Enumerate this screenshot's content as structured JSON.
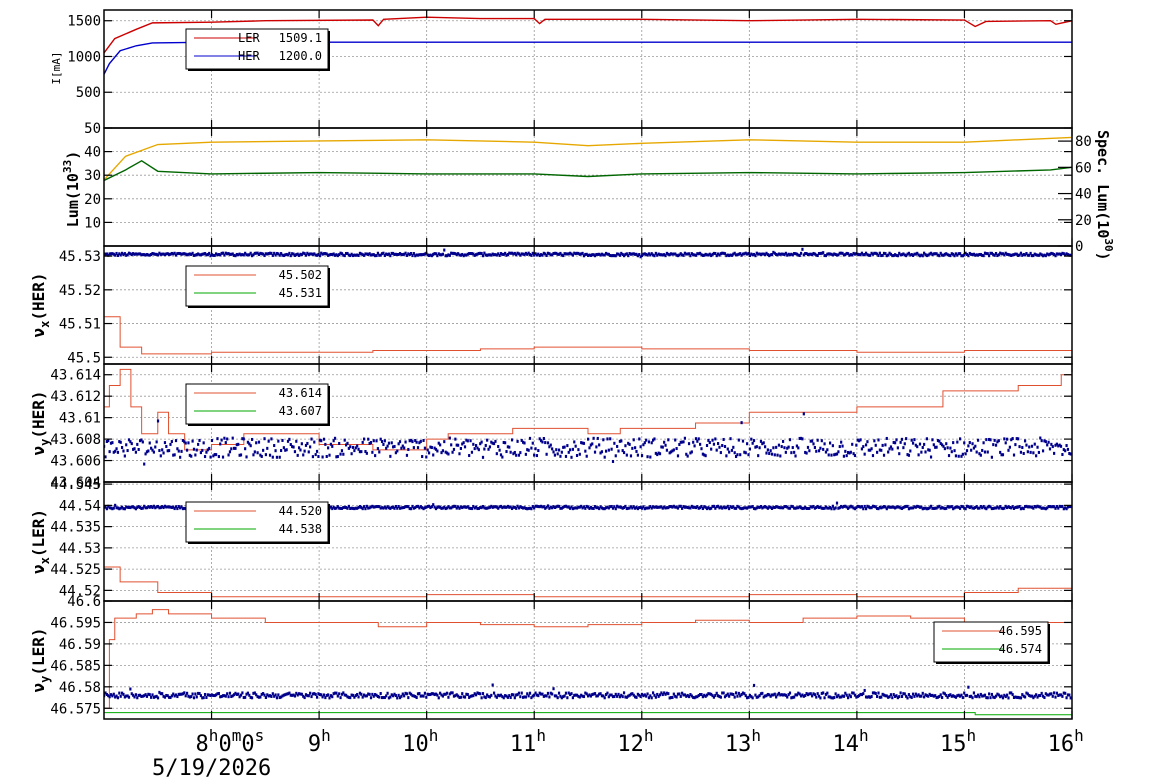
{
  "chart_data": {
    "type": "line",
    "x_axis": {
      "range_hours": [
        7.0,
        16.0
      ],
      "ticks": [
        {
          "hour": 8,
          "label": "8",
          "sup": "h",
          "extra": "0",
          "extra_sup": "m",
          "extra2": "0",
          "extra2_sup": "s"
        },
        {
          "hour": 9,
          "label": "9",
          "sup": "h"
        },
        {
          "hour": 10,
          "label": "10",
          "sup": "h"
        },
        {
          "hour": 11,
          "label": "11",
          "sup": "h"
        },
        {
          "hour": 12,
          "label": "12",
          "sup": "h"
        },
        {
          "hour": 13,
          "label": "13",
          "sup": "h"
        },
        {
          "hour": 14,
          "label": "14",
          "sup": "h"
        },
        {
          "hour": 15,
          "label": "15",
          "sup": "h"
        },
        {
          "hour": 16,
          "label": "16",
          "sup": "h"
        }
      ],
      "date_label": "5/19/2026"
    },
    "panels": [
      {
        "id": "current",
        "ylabel": "I[mA]",
        "ylim": [
          0,
          1650
        ],
        "yticks": [
          500,
          1000,
          1500
        ],
        "tick_labels": [
          "500",
          "1000",
          "1500"
        ],
        "legend": {
          "position": "top-left",
          "entries": [
            {
              "name": "LER",
              "value": "1509.1",
              "color": "#cc0000"
            },
            {
              "name": "HER",
              "value": "1200.0",
              "color": "#0000cc"
            }
          ]
        },
        "series": [
          {
            "name": "LER",
            "color": "#cc0000",
            "points": [
              [
                7.0,
                1050
              ],
              [
                7.1,
                1250
              ],
              [
                7.3,
                1380
              ],
              [
                7.45,
                1470
              ],
              [
                8.0,
                1480
              ],
              [
                8.5,
                1500
              ],
              [
                9.5,
                1510
              ],
              [
                9.55,
                1430
              ],
              [
                9.6,
                1520
              ],
              [
                10.0,
                1550
              ],
              [
                10.5,
                1530
              ],
              [
                11.0,
                1530
              ],
              [
                11.05,
                1460
              ],
              [
                11.1,
                1520
              ],
              [
                12.0,
                1520
              ],
              [
                13.0,
                1500
              ],
              [
                14.0,
                1520
              ],
              [
                15.0,
                1510
              ],
              [
                15.1,
                1420
              ],
              [
                15.2,
                1490
              ],
              [
                15.8,
                1500
              ],
              [
                15.85,
                1450
              ],
              [
                16.0,
                1500
              ]
            ]
          },
          {
            "name": "HER",
            "color": "#0000cc",
            "points": [
              [
                7.0,
                750
              ],
              [
                7.05,
                900
              ],
              [
                7.15,
                1080
              ],
              [
                7.3,
                1150
              ],
              [
                7.45,
                1190
              ],
              [
                8.0,
                1200
              ],
              [
                16.0,
                1200
              ]
            ]
          }
        ]
      },
      {
        "id": "luminosity",
        "ylabel": "Lum(10",
        "ylabel_sup": "33",
        "ylabel_close": ")",
        "ylim": [
          0,
          50
        ],
        "yticks": [
          10,
          20,
          30,
          40,
          50
        ],
        "tick_labels": [
          "10",
          "20",
          "30",
          "40",
          "50"
        ],
        "y2label": "Spec. Lum(10",
        "y2label_sup": "30",
        "y2label_close": ")",
        "y2lim": [
          0,
          90
        ],
        "y2ticks": [
          0,
          20,
          40,
          60,
          80
        ],
        "y2tick_labels": [
          "0",
          "20",
          "40",
          "60",
          "80"
        ],
        "series": [
          {
            "name": "Luminosity",
            "color": "#e6a800",
            "axis": "left",
            "points": [
              [
                7.0,
                28
              ],
              [
                7.2,
                38
              ],
              [
                7.5,
                43
              ],
              [
                8.0,
                44
              ],
              [
                9.0,
                44.5
              ],
              [
                10.0,
                45
              ],
              [
                11.0,
                44
              ],
              [
                11.5,
                42.5
              ],
              [
                12.0,
                43.5
              ],
              [
                13.0,
                45
              ],
              [
                14.0,
                44
              ],
              [
                15.0,
                44
              ],
              [
                15.5,
                45
              ],
              [
                16.0,
                46
              ]
            ]
          },
          {
            "name": "Specific luminosity",
            "color": "#006600",
            "axis": "right",
            "points": [
              [
                7.0,
                50
              ],
              [
                7.2,
                58
              ],
              [
                7.35,
                65
              ],
              [
                7.5,
                57
              ],
              [
                8.0,
                55
              ],
              [
                9.0,
                56
              ],
              [
                10.0,
                55
              ],
              [
                11.0,
                55
              ],
              [
                11.5,
                53
              ],
              [
                12.0,
                55
              ],
              [
                13.0,
                56
              ],
              [
                14.0,
                55
              ],
              [
                15.0,
                56
              ],
              [
                15.8,
                58
              ],
              [
                16.0,
                60
              ]
            ]
          }
        ]
      },
      {
        "id": "nux_her",
        "ylabel": "ν",
        "ylabel_sub": "x",
        "ylabel_rest": "(HER)",
        "ylim": [
          45.498,
          45.533
        ],
        "yticks": [
          45.5,
          45.51,
          45.52,
          45.53
        ],
        "tick_labels": [
          "45.5",
          "45.51",
          "45.52",
          "45.53"
        ],
        "legend": {
          "position": "top-left",
          "entries": [
            {
              "name": "",
              "value": "45.502",
              "color": "#e05030"
            },
            {
              "name": "",
              "value": "45.531",
              "color": "#00aa00"
            }
          ]
        },
        "series": [
          {
            "name": "set",
            "color": "#e05030",
            "step": true,
            "points": [
              [
                7.0,
                45.512
              ],
              [
                7.15,
                45.503
              ],
              [
                7.35,
                45.501
              ],
              [
                8.0,
                45.5015
              ],
              [
                9.5,
                45.502
              ],
              [
                10.5,
                45.5025
              ],
              [
                11.0,
                45.503
              ],
              [
                12.0,
                45.5025
              ],
              [
                13.0,
                45.502
              ],
              [
                14.0,
                45.5015
              ],
              [
                15.0,
                45.502
              ],
              [
                16.0,
                45.502
              ]
            ]
          },
          {
            "name": "measured",
            "color": "#00008b",
            "scatter": true,
            "center": 45.5305,
            "jitter": 0.0004,
            "points": []
          }
        ]
      },
      {
        "id": "nuy_her",
        "ylabel": "ν",
        "ylabel_sub": "y",
        "ylabel_rest": "(HER)",
        "ylim": [
          43.604,
          43.615
        ],
        "yticks": [
          43.604,
          43.606,
          43.608,
          43.61,
          43.612,
          43.614
        ],
        "tick_labels": [
          "43.604",
          "43.606",
          "43.608",
          "43.61",
          "43.612",
          "43.614"
        ],
        "legend": {
          "position": "top-left",
          "entries": [
            {
              "name": "",
              "value": "43.614",
              "color": "#e05030"
            },
            {
              "name": "",
              "value": "43.607",
              "color": "#00aa00"
            }
          ]
        },
        "series": [
          {
            "name": "set",
            "color": "#e05030",
            "step": true,
            "points": [
              [
                7.0,
                43.611
              ],
              [
                7.05,
                43.613
              ],
              [
                7.15,
                43.6145
              ],
              [
                7.25,
                43.611
              ],
              [
                7.35,
                43.6085
              ],
              [
                7.5,
                43.6105
              ],
              [
                7.6,
                43.6085
              ],
              [
                7.75,
                43.607
              ],
              [
                8.0,
                43.6075
              ],
              [
                8.3,
                43.6085
              ],
              [
                9.0,
                43.6075
              ],
              [
                9.5,
                43.607
              ],
              [
                10.0,
                43.608
              ],
              [
                10.2,
                43.6085
              ],
              [
                10.8,
                43.609
              ],
              [
                11.5,
                43.6085
              ],
              [
                11.8,
                43.609
              ],
              [
                12.5,
                43.6095
              ],
              [
                13.0,
                43.6105
              ],
              [
                14.0,
                43.611
              ],
              [
                14.8,
                43.6125
              ],
              [
                15.5,
                43.613
              ],
              [
                15.9,
                43.614
              ],
              [
                16.0,
                43.614
              ]
            ]
          },
          {
            "name": "measured",
            "color": "#00008b",
            "scatter": true,
            "center": 43.6072,
            "jitter": 0.0009,
            "points": []
          }
        ]
      },
      {
        "id": "nux_ler",
        "ylabel": "ν",
        "ylabel_sub": "x",
        "ylabel_rest": "(LER)",
        "ylim": [
          44.5175,
          44.5455
        ],
        "yticks": [
          44.52,
          44.525,
          44.53,
          44.535,
          44.54,
          44.545
        ],
        "tick_labels": [
          "44.52",
          "44.525",
          "44.53",
          "44.535",
          "44.54",
          "44.545"
        ],
        "legend": {
          "position": "top-left",
          "entries": [
            {
              "name": "",
              "value": "44.520",
              "color": "#e05030"
            },
            {
              "name": "",
              "value": "44.538",
              "color": "#00aa00"
            }
          ]
        },
        "series": [
          {
            "name": "set",
            "color": "#e05030",
            "step": true,
            "points": [
              [
                7.0,
                44.5255
              ],
              [
                7.15,
                44.522
              ],
              [
                7.5,
                44.5195
              ],
              [
                8.0,
                44.5185
              ],
              [
                9.0,
                44.5185
              ],
              [
                10.0,
                44.519
              ],
              [
                11.0,
                44.5185
              ],
              [
                12.0,
                44.5185
              ],
              [
                13.0,
                44.519
              ],
              [
                14.0,
                44.5185
              ],
              [
                15.0,
                44.5195
              ],
              [
                15.5,
                44.5205
              ],
              [
                16.0,
                44.521
              ]
            ]
          },
          {
            "name": "measured",
            "color": "#00008b",
            "scatter": true,
            "center": 44.5395,
            "jitter": 0.0003,
            "points": []
          }
        ]
      },
      {
        "id": "nuy_ler",
        "ylabel": "ν",
        "ylabel_sub": "y",
        "ylabel_rest": "(LER)",
        "ylim": [
          46.5725,
          46.6
        ],
        "yticks": [
          46.575,
          46.58,
          46.585,
          46.59,
          46.595,
          46.6
        ],
        "tick_labels": [
          "46.575",
          "46.58",
          "46.585",
          "46.59",
          "46.595",
          "46.6"
        ],
        "legend": {
          "position": "right",
          "entries": [
            {
              "name": "",
              "value": "46.595",
              "color": "#e05030"
            },
            {
              "name": "",
              "value": "46.574",
              "color": "#00aa00"
            }
          ]
        },
        "series": [
          {
            "name": "set",
            "color": "#e05030",
            "step": true,
            "points": [
              [
                7.0,
                46.575
              ],
              [
                7.05,
                46.591
              ],
              [
                7.1,
                46.596
              ],
              [
                7.3,
                46.597
              ],
              [
                7.45,
                46.598
              ],
              [
                7.6,
                46.597
              ],
              [
                8.0,
                46.596
              ],
              [
                8.5,
                46.595
              ],
              [
                9.0,
                46.595
              ],
              [
                9.55,
                46.594
              ],
              [
                10.0,
                46.595
              ],
              [
                10.5,
                46.5945
              ],
              [
                11.0,
                46.594
              ],
              [
                11.5,
                46.5945
              ],
              [
                12.0,
                46.595
              ],
              [
                12.5,
                46.5955
              ],
              [
                13.0,
                46.595
              ],
              [
                13.5,
                46.596
              ],
              [
                14.0,
                46.5965
              ],
              [
                14.5,
                46.596
              ],
              [
                15.0,
                46.595
              ],
              [
                15.5,
                46.595
              ],
              [
                16.0,
                46.595
              ]
            ]
          },
          {
            "name": "green",
            "color": "#00aa00",
            "step": true,
            "points": [
              [
                7.0,
                46.574
              ],
              [
                15.1,
                46.574
              ],
              [
                15.1,
                46.5735
              ],
              [
                16.0,
                46.5735
              ]
            ]
          },
          {
            "name": "measured",
            "color": "#00008b",
            "scatter": true,
            "center": 46.578,
            "jitter": 0.0006,
            "points": []
          }
        ]
      }
    ]
  }
}
